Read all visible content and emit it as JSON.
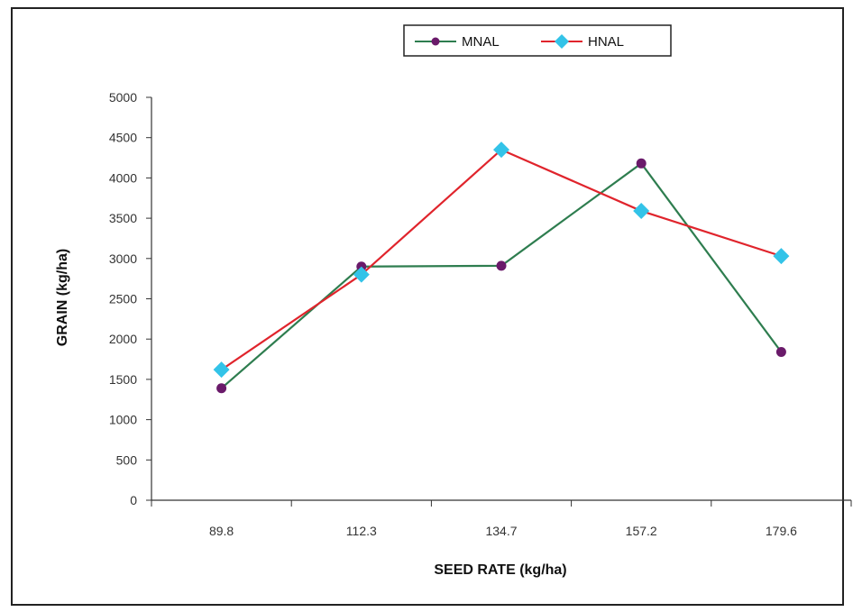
{
  "chart_data": {
    "type": "line",
    "categories": [
      "89.8",
      "112.3",
      "134.7",
      "157.2",
      "179.6"
    ],
    "series": [
      {
        "name": "MNAL",
        "values": [
          1390,
          2900,
          2910,
          4180,
          1840
        ],
        "color": "#6a1a6a",
        "line_color": "#2e7d4f",
        "marker": "circle"
      },
      {
        "name": "HNAL",
        "values": [
          1620,
          2800,
          4350,
          3590,
          3030
        ],
        "color": "#33c3e8",
        "line_color": "#e0242c",
        "marker": "diamond"
      }
    ],
    "xlabel": "SEED RATE (kg/ha)",
    "ylabel": "GRAIN (kg/ha)",
    "ylim": [
      0,
      5000
    ],
    "yticks": [
      "0",
      "500",
      "1000",
      "1500",
      "2000",
      "2500",
      "3000",
      "3500",
      "4000",
      "4500",
      "5000"
    ],
    "grid": false,
    "legend_position": "top-center"
  }
}
